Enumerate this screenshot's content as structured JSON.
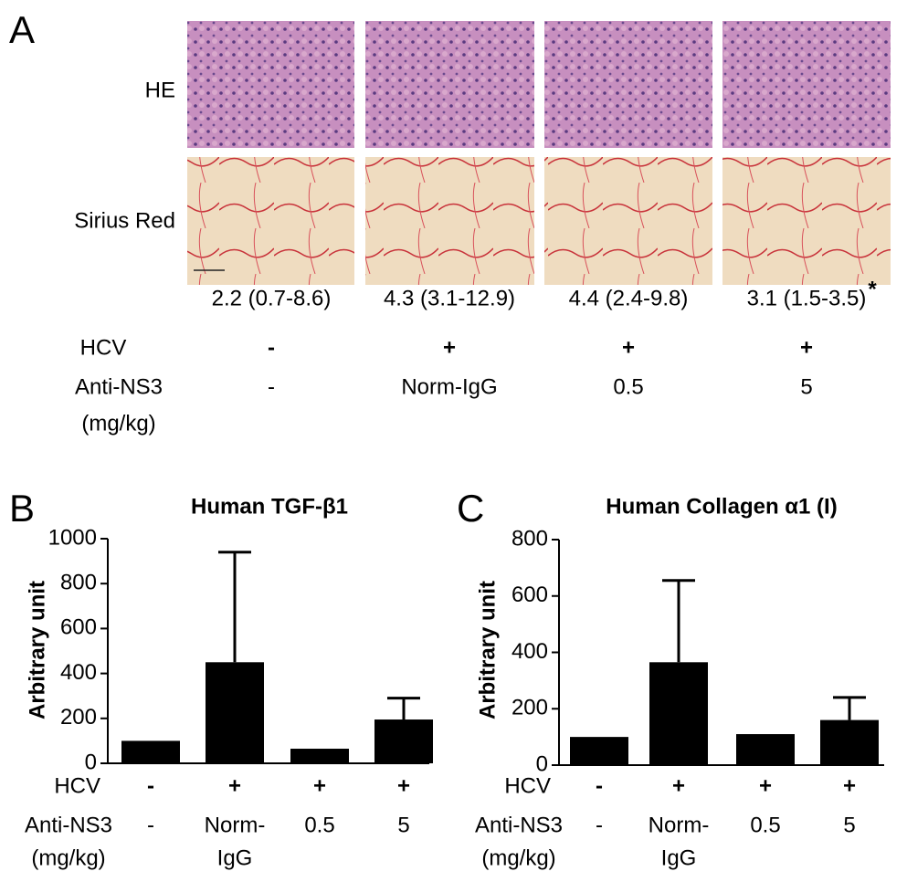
{
  "panel_a": {
    "label": "A",
    "row_labels": [
      "HE",
      "Sirius Red"
    ],
    "scores": [
      "2.2 (0.7-8.6)",
      "4.3 (3.1-12.9)",
      "4.4 (2.4-9.8)",
      "3.1 (1.5-3.5)"
    ],
    "significance": "*",
    "condition_labels": [
      "HCV",
      "Anti-NS3",
      "(mg/kg)"
    ],
    "hcv": [
      "-",
      "+",
      "+",
      "+"
    ],
    "anti_ns3": [
      "-",
      "Norm-IgG",
      "0.5",
      "5"
    ]
  },
  "chart_data": [
    {
      "type": "bar",
      "panel_label": "B",
      "title": "Human TGF-β1",
      "y_label": "Arbitrary unit",
      "condition_labels": [
        "HCV",
        "Anti-NS3",
        "(mg/kg)"
      ],
      "hcv": [
        "-",
        "+",
        "+",
        "+"
      ],
      "anti_ns3": [
        [
          "-"
        ],
        [
          "Norm-",
          "IgG"
        ],
        [
          "0.5"
        ],
        [
          "5"
        ]
      ],
      "values": [
        100,
        450,
        65,
        195
      ],
      "errors": [
        null,
        490,
        null,
        95
      ],
      "color": "#000000",
      "ylim": [
        0,
        1000
      ],
      "yticks": [
        0,
        200,
        400,
        600,
        800,
        1000
      ]
    },
    {
      "type": "bar",
      "panel_label": "C",
      "title": "Human Collagen α1 (I)",
      "y_label": "Arbitrary unit",
      "condition_labels": [
        "HCV",
        "Anti-NS3",
        "(mg/kg)"
      ],
      "hcv": [
        "-",
        "+",
        "+",
        "+"
      ],
      "anti_ns3": [
        [
          "-"
        ],
        [
          "Norm-",
          "IgG"
        ],
        [
          "0.5"
        ],
        [
          "5"
        ]
      ],
      "values": [
        100,
        365,
        110,
        160
      ],
      "errors": [
        null,
        290,
        null,
        80
      ],
      "color": "#000000",
      "ylim": [
        0,
        800
      ],
      "yticks": [
        0,
        200,
        400,
        600,
        800
      ]
    }
  ]
}
